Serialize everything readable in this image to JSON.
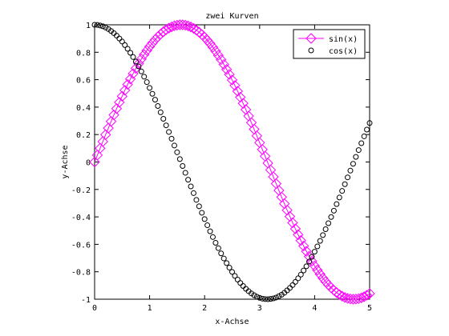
{
  "chart_data": {
    "type": "line",
    "title": "zwei Kurven",
    "xlabel": "x-Achse",
    "ylabel": "y-Achse",
    "xlim": [
      0,
      5
    ],
    "ylim": [
      -1,
      1
    ],
    "xticks": [
      0,
      1,
      2,
      3,
      4,
      5
    ],
    "xtick_labels": [
      "0",
      "1",
      "2",
      "3",
      "4",
      "5"
    ],
    "yticks": [
      -1,
      -0.8,
      -0.6,
      -0.4,
      -0.2,
      0,
      0.2,
      0.4,
      0.6,
      0.8,
      1
    ],
    "ytick_labels": [
      "-1",
      "-0.8",
      "-0.6",
      "-0.4",
      "-0.2",
      "0",
      "0.2",
      "0.4",
      "0.6",
      "0.8",
      "1"
    ],
    "grid": false,
    "legend_position": "top-right",
    "x": [
      0,
      0.05,
      0.1,
      0.15,
      0.2,
      0.25,
      0.3,
      0.35,
      0.4,
      0.45,
      0.5,
      0.55,
      0.6,
      0.65,
      0.7,
      0.75,
      0.8,
      0.85,
      0.9,
      0.95,
      1,
      1.05,
      1.1,
      1.15,
      1.2,
      1.25,
      1.3,
      1.35,
      1.4,
      1.45,
      1.5,
      1.55,
      1.6,
      1.65,
      1.7,
      1.75,
      1.8,
      1.85,
      1.9,
      1.95,
      2,
      2.05,
      2.1,
      2.15,
      2.2,
      2.25,
      2.3,
      2.35,
      2.4,
      2.45,
      2.5,
      2.55,
      2.6,
      2.65,
      2.7,
      2.75,
      2.8,
      2.85,
      2.9,
      2.95,
      3,
      3.05,
      3.1,
      3.15,
      3.2,
      3.25,
      3.3,
      3.35,
      3.4,
      3.45,
      3.5,
      3.55,
      3.6,
      3.65,
      3.7,
      3.75,
      3.8,
      3.85,
      3.9,
      3.95,
      4,
      4.05,
      4.1,
      4.15,
      4.2,
      4.25,
      4.3,
      4.35,
      4.4,
      4.45,
      4.5,
      4.55,
      4.6,
      4.65,
      4.7,
      4.75,
      4.8,
      4.85,
      4.9,
      4.95,
      5
    ],
    "series": [
      {
        "name": "sin(x)",
        "color": "#ff00ff",
        "marker": "diamond",
        "line": "solid",
        "values": [
          0,
          0.05,
          0.1,
          0.149,
          0.199,
          0.247,
          0.296,
          0.343,
          0.389,
          0.435,
          0.479,
          0.523,
          0.565,
          0.605,
          0.644,
          0.682,
          0.717,
          0.751,
          0.783,
          0.813,
          0.841,
          0.867,
          0.891,
          0.913,
          0.932,
          0.949,
          0.964,
          0.976,
          0.985,
          0.993,
          0.997,
          1,
          1,
          0.997,
          0.992,
          0.984,
          0.974,
          0.961,
          0.946,
          0.929,
          0.909,
          0.887,
          0.863,
          0.837,
          0.808,
          0.778,
          0.746,
          0.711,
          0.675,
          0.638,
          0.598,
          0.558,
          0.516,
          0.472,
          0.427,
          0.382,
          0.335,
          0.287,
          0.239,
          0.19,
          0.141,
          0.091,
          0.042,
          -0.008,
          -0.058,
          -0.108,
          -0.158,
          -0.207,
          -0.256,
          -0.304,
          -0.351,
          -0.397,
          -0.443,
          -0.487,
          -0.53,
          -0.572,
          -0.612,
          -0.651,
          -0.688,
          -0.723,
          -0.757,
          -0.788,
          -0.818,
          -0.846,
          -0.872,
          -0.895,
          -0.916,
          -0.935,
          -0.952,
          -0.966,
          -0.978,
          -0.987,
          -0.994,
          -0.998,
          -1,
          -0.999,
          -0.996,
          -0.99,
          -0.982,
          -0.971,
          -0.959
        ]
      },
      {
        "name": "cos(x)",
        "color": "#000000",
        "marker": "circle",
        "line": "none",
        "values": [
          1,
          0.999,
          0.995,
          0.989,
          0.98,
          0.969,
          0.955,
          0.939,
          0.921,
          0.9,
          0.878,
          0.852,
          0.825,
          0.796,
          0.765,
          0.732,
          0.697,
          0.66,
          0.622,
          0.582,
          0.54,
          0.497,
          0.454,
          0.408,
          0.362,
          0.315,
          0.267,
          0.219,
          0.17,
          0.12,
          0.071,
          0.021,
          -0.029,
          -0.079,
          -0.129,
          -0.178,
          -0.227,
          -0.276,
          -0.323,
          -0.37,
          -0.416,
          -0.461,
          -0.505,
          -0.547,
          -0.589,
          -0.628,
          -0.666,
          -0.703,
          -0.737,
          -0.77,
          -0.801,
          -0.83,
          -0.857,
          -0.882,
          -0.904,
          -0.924,
          -0.942,
          -0.958,
          -0.971,
          -0.982,
          -0.99,
          -0.996,
          -0.999,
          -1,
          -0.998,
          -0.994,
          -0.988,
          -0.978,
          -0.967,
          -0.953,
          -0.936,
          -0.918,
          -0.897,
          -0.874,
          -0.848,
          -0.821,
          -0.791,
          -0.76,
          -0.726,
          -0.691,
          -0.654,
          -0.615,
          -0.575,
          -0.533,
          -0.49,
          -0.446,
          -0.401,
          -0.355,
          -0.307,
          -0.259,
          -0.211,
          -0.162,
          -0.112,
          -0.063,
          -0.013,
          0.037,
          0.087,
          0.137,
          0.187,
          0.236,
          0.284
        ]
      }
    ]
  }
}
